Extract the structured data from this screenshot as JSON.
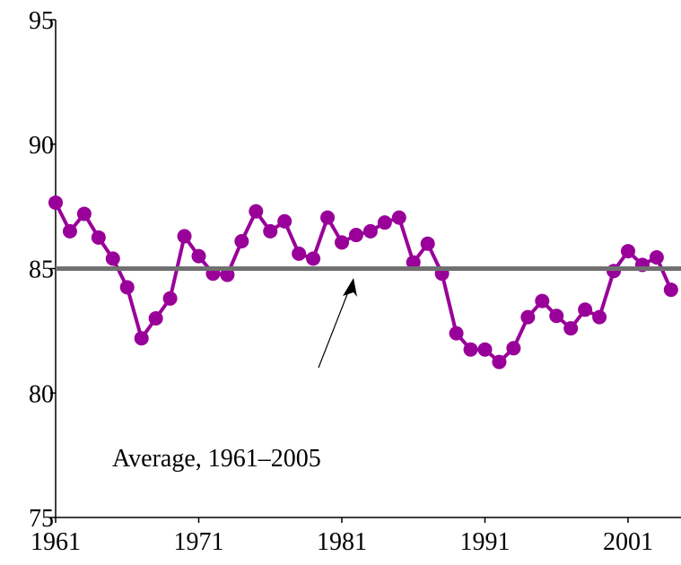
{
  "chart_data": {
    "type": "line",
    "annotation": "Average, 1961–2005",
    "x": [
      1961,
      1962,
      1963,
      1964,
      1965,
      1966,
      1967,
      1968,
      1969,
      1970,
      1971,
      1972,
      1973,
      1974,
      1975,
      1976,
      1977,
      1978,
      1979,
      1980,
      1981,
      1982,
      1983,
      1984,
      1985,
      1986,
      1987,
      1988,
      1989,
      1990,
      1991,
      1992,
      1993,
      1994,
      1995,
      1996,
      1997,
      1998,
      1999,
      2000,
      2001,
      2002,
      2003,
      2004
    ],
    "series": [
      {
        "color": "#990099",
        "values": [
          87.65,
          86.5,
          87.2,
          86.25,
          85.4,
          84.25,
          82.2,
          83.0,
          83.8,
          86.3,
          85.5,
          84.8,
          84.75,
          86.1,
          87.3,
          86.5,
          86.9,
          85.6,
          85.4,
          87.05,
          86.05,
          86.35,
          86.5,
          86.85,
          87.05,
          85.25,
          86.0,
          84.8,
          82.4,
          81.75,
          81.75,
          81.25,
          81.8,
          83.05,
          83.7,
          83.1,
          82.6,
          83.35,
          83.05,
          84.9,
          85.7,
          85.15,
          85.45,
          84.15
        ]
      }
    ],
    "reference_line": {
      "value": 85,
      "color": "#707070"
    },
    "xlim": [
      1961,
      2004.7
    ],
    "xticks": [
      1961,
      1971,
      1981,
      1991,
      2001
    ],
    "ylim": [
      75,
      95
    ],
    "yticks": [
      75,
      80,
      85,
      90,
      95
    ]
  }
}
